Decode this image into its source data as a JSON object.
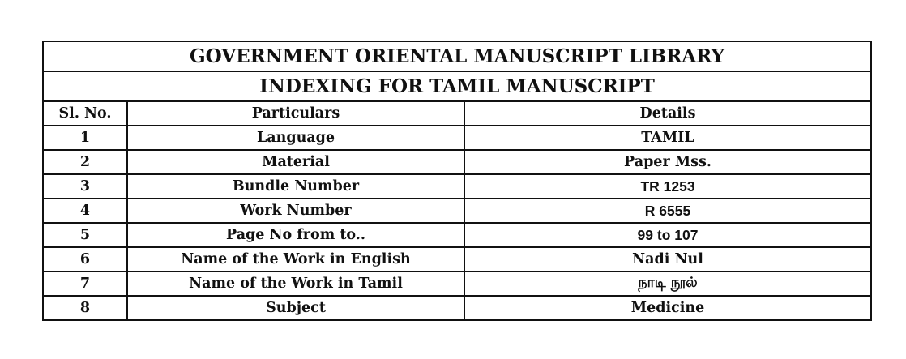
{
  "document": {
    "title": "GOVERNMENT ORIENTAL MANUSCRIPT LIBRARY",
    "subtitle": "INDEXING FOR TAMIL MANUSCRIPT",
    "headers": [
      "Sl. No.",
      "Particulars",
      "Details"
    ],
    "rows": [
      {
        "no": "1",
        "particular": "Language",
        "detail": "TAMIL"
      },
      {
        "no": "2",
        "particular": "Material",
        "detail": "Paper Mss."
      },
      {
        "no": "3",
        "particular": "Bundle Number",
        "detail": "TR 1253"
      },
      {
        "no": "4",
        "particular": "Work  Number",
        "detail": "R 6555"
      },
      {
        "no": "5",
        "particular": "Page No from to..",
        "detail": "99 to 107"
      },
      {
        "no": "6",
        "particular": "Name of the Work in English",
        "detail": "Nadi Nul"
      },
      {
        "no": "7",
        "particular": "Name of the Work in Tamil",
        "detail": "நாடி  நூல்"
      },
      {
        "no": "8",
        "particular": "Subject",
        "detail": "Medicine"
      }
    ]
  }
}
